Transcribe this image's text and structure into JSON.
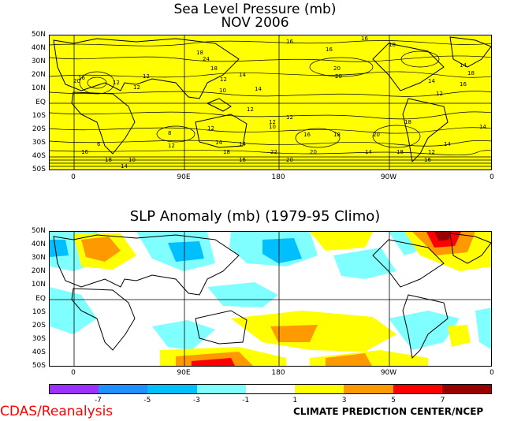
{
  "top_panel": {
    "title": "Sea Level Pressure (mb)",
    "subtitle": "NOV 2006",
    "fill_color": "#ffff00",
    "contour_labels": [
      "16",
      "16",
      "16",
      "18",
      "20",
      "20",
      "24",
      "18",
      "18",
      "14",
      "12",
      "12",
      "12",
      "20",
      "16",
      "12",
      "14",
      "10",
      "12",
      "12",
      "10",
      "12",
      "16",
      "18",
      "20",
      "14",
      "12",
      "14",
      "18",
      "16",
      "14",
      "14",
      "12",
      "16",
      "18",
      "20",
      "22",
      "16",
      "18",
      "14",
      "12",
      "10",
      "18",
      "14",
      "16",
      "6",
      "8",
      "12",
      "14",
      "18",
      "14",
      "20"
    ]
  },
  "bottom_panel": {
    "title": "SLP Anomaly (mb) (1979-95 Climo)"
  },
  "lat_labels": [
    "50N",
    "40N",
    "30N",
    "20N",
    "10N",
    "EQ",
    "10S",
    "20S",
    "30S",
    "40S",
    "50S"
  ],
  "lon_labels": [
    "0",
    "90E",
    "180",
    "90W",
    "0"
  ],
  "colorbar": {
    "colors": [
      "#9b30ff",
      "#1e90ff",
      "#00bfff",
      "#7fffff",
      "#ffffff",
      "#ffff00",
      "#ff9900",
      "#ff0000",
      "#990000"
    ],
    "labels": [
      "-7",
      "-5",
      "-3",
      "-1",
      "1",
      "3",
      "5",
      "7"
    ]
  },
  "footer": {
    "left": "CDAS/Reanalysis",
    "right": "CLIMATE PREDICTION CENTER/NCEP"
  }
}
